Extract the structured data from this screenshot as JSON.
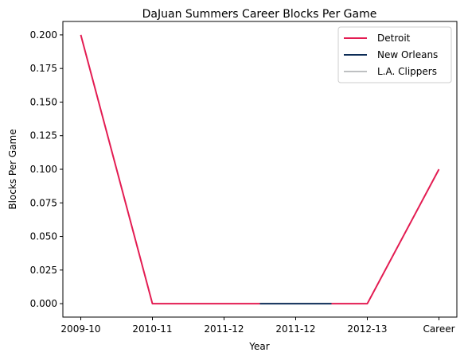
{
  "chart_data": {
    "type": "line",
    "title": "DaJuan Summers Career Blocks Per Game",
    "xlabel": "Year",
    "ylabel": "Blocks Per Game",
    "categories": [
      "2009-10",
      "2010-11",
      "2011-12",
      "2011-12",
      "2012-13",
      "Career"
    ],
    "ylim": [
      -0.01,
      0.21
    ],
    "yticks": [
      "0.000",
      "0.025",
      "0.050",
      "0.075",
      "0.100",
      "0.125",
      "0.150",
      "0.175",
      "0.200"
    ],
    "grid": false,
    "legend_position": "top-right",
    "series": [
      {
        "name": "Detroit",
        "color": "#E31C52",
        "segments": [
          [
            [
              0,
              0.2
            ],
            [
              1.0,
              0.0
            ],
            [
              2.0,
              0.0
            ],
            [
              2.5,
              0.0
            ]
          ],
          [
            [
              3.5,
              0.0
            ],
            [
              4.0,
              0.0
            ],
            [
              5.0,
              0.1
            ]
          ]
        ]
      },
      {
        "name": "New Orleans",
        "color": "#0C2C56",
        "segments": [
          [
            [
              2.5,
              0.0
            ],
            [
              3.0,
              0.0
            ],
            [
              3.5,
              0.0
            ]
          ]
        ]
      },
      {
        "name": "L.A. Clippers",
        "color": "#BEC0C2",
        "segments": []
      }
    ]
  }
}
